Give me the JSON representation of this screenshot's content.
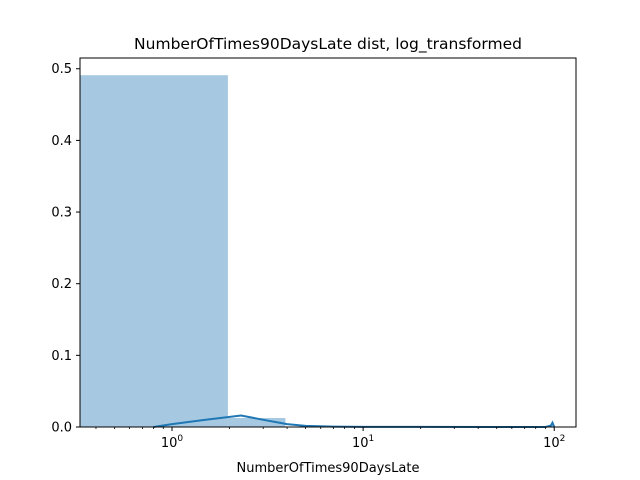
{
  "chart_data": {
    "type": "bar",
    "title": "NumberOfTimes90DaysLate dist, log_transformed",
    "xlabel": "NumberOfTimes90DaysLate",
    "ylabel": "",
    "x_scale": "log",
    "xlim": [
      0.33,
      130
    ],
    "ylim": [
      0,
      0.515
    ],
    "grid": false,
    "x_ticks": [
      {
        "value": 1,
        "label": "10",
        "exponent": "0"
      },
      {
        "value": 10,
        "label": "10",
        "exponent": "1"
      },
      {
        "value": 100,
        "label": "10",
        "exponent": "2"
      }
    ],
    "y_ticks": [
      {
        "value": 0.0,
        "label": "0.0"
      },
      {
        "value": 0.1,
        "label": "0.1"
      },
      {
        "value": 0.2,
        "label": "0.2"
      },
      {
        "value": 0.3,
        "label": "0.3"
      },
      {
        "value": 0.4,
        "label": "0.4"
      },
      {
        "value": 0.5,
        "label": "0.5"
      }
    ],
    "histogram": {
      "bins": [
        {
          "x0": 0,
          "x1": 1.96,
          "value": 0.491
        },
        {
          "x0": 1.96,
          "x1": 3.92,
          "value": 0.0125
        },
        {
          "x0": 3.92,
          "x1": 5.88,
          "value": 0.0005
        },
        {
          "x0": 96.04,
          "x1": 98.0,
          "value": 0.004
        }
      ],
      "color": "#a6c8e0"
    },
    "kde": {
      "x": [
        0.8,
        1.0,
        1.5,
        2.3,
        3.0,
        4.0,
        5.0,
        7.0,
        10,
        20,
        50,
        90,
        96,
        98,
        100
      ],
      "y": [
        0.0,
        0.004,
        0.01,
        0.016,
        0.01,
        0.004,
        0.0015,
        0.0005,
        0.0002,
        0.0001,
        0.0,
        0.0,
        0.002,
        0.006,
        0.0
      ],
      "color": "#1f77b4"
    }
  }
}
